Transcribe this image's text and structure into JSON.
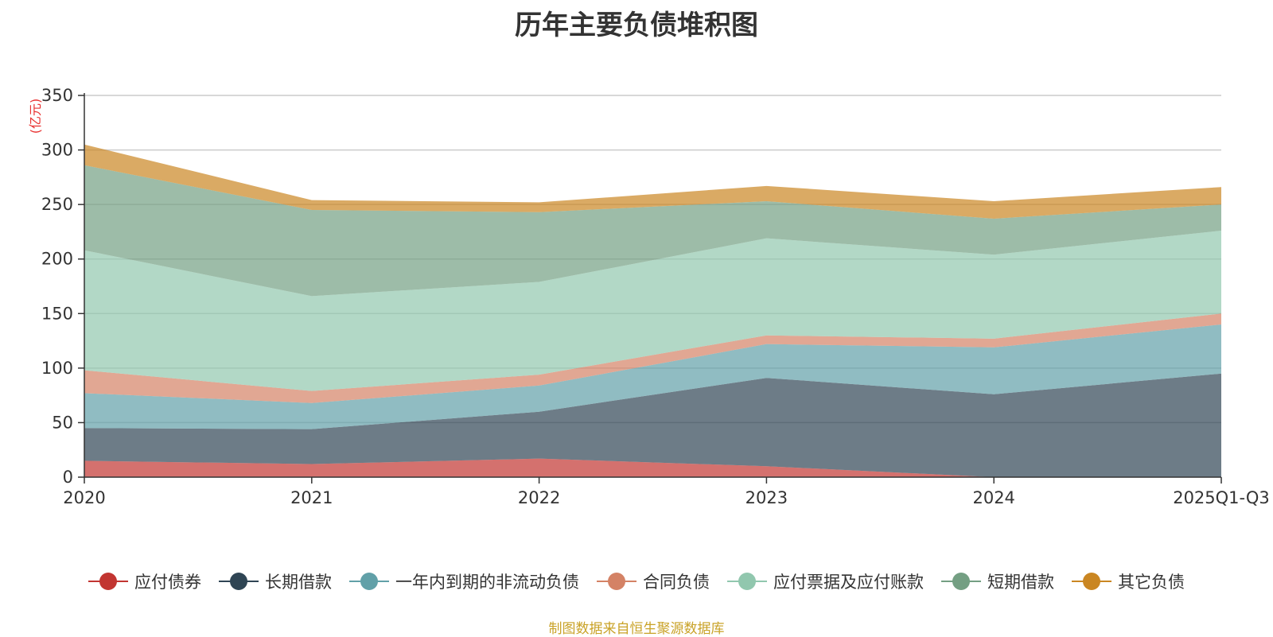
{
  "title": "历年主要负债堆积图",
  "source_note": "制图数据来自恒生聚源数据库",
  "chart_data": {
    "type": "area",
    "stacked": true,
    "title": "历年主要负债堆积图",
    "unit_label": "(亿元)",
    "categories": [
      "2020",
      "2021",
      "2022",
      "2023",
      "2024",
      "2025Q1-Q3"
    ],
    "ylim": [
      0,
      350
    ],
    "yticks": [
      0,
      50,
      100,
      150,
      200,
      250,
      300,
      350
    ],
    "grid": true,
    "legend_position": "bottom",
    "series": [
      {
        "name": "应付债券",
        "color": "#c23531",
        "values": [
          15,
          12,
          17,
          10,
          0,
          0
        ]
      },
      {
        "name": "长期借款",
        "color": "#2f4554",
        "values": [
          30,
          32,
          43,
          81,
          76,
          95
        ]
      },
      {
        "name": "一年内到期的非流动负债",
        "color": "#61a0a8",
        "values": [
          32,
          24,
          24,
          31,
          43,
          45
        ]
      },
      {
        "name": "合同负债",
        "color": "#d48265",
        "values": [
          21,
          11,
          10,
          8,
          8,
          10
        ]
      },
      {
        "name": "应付票据及应付账款",
        "color": "#91c7ae",
        "values": [
          110,
          87,
          85,
          89,
          77,
          76
        ]
      },
      {
        "name": "短期借款",
        "color": "#749f83",
        "values": [
          78,
          79,
          64,
          34,
          33,
          24
        ]
      },
      {
        "name": "其它负债",
        "color": "#ca8622",
        "values": [
          19,
          9,
          9,
          14,
          16,
          16
        ]
      }
    ]
  }
}
